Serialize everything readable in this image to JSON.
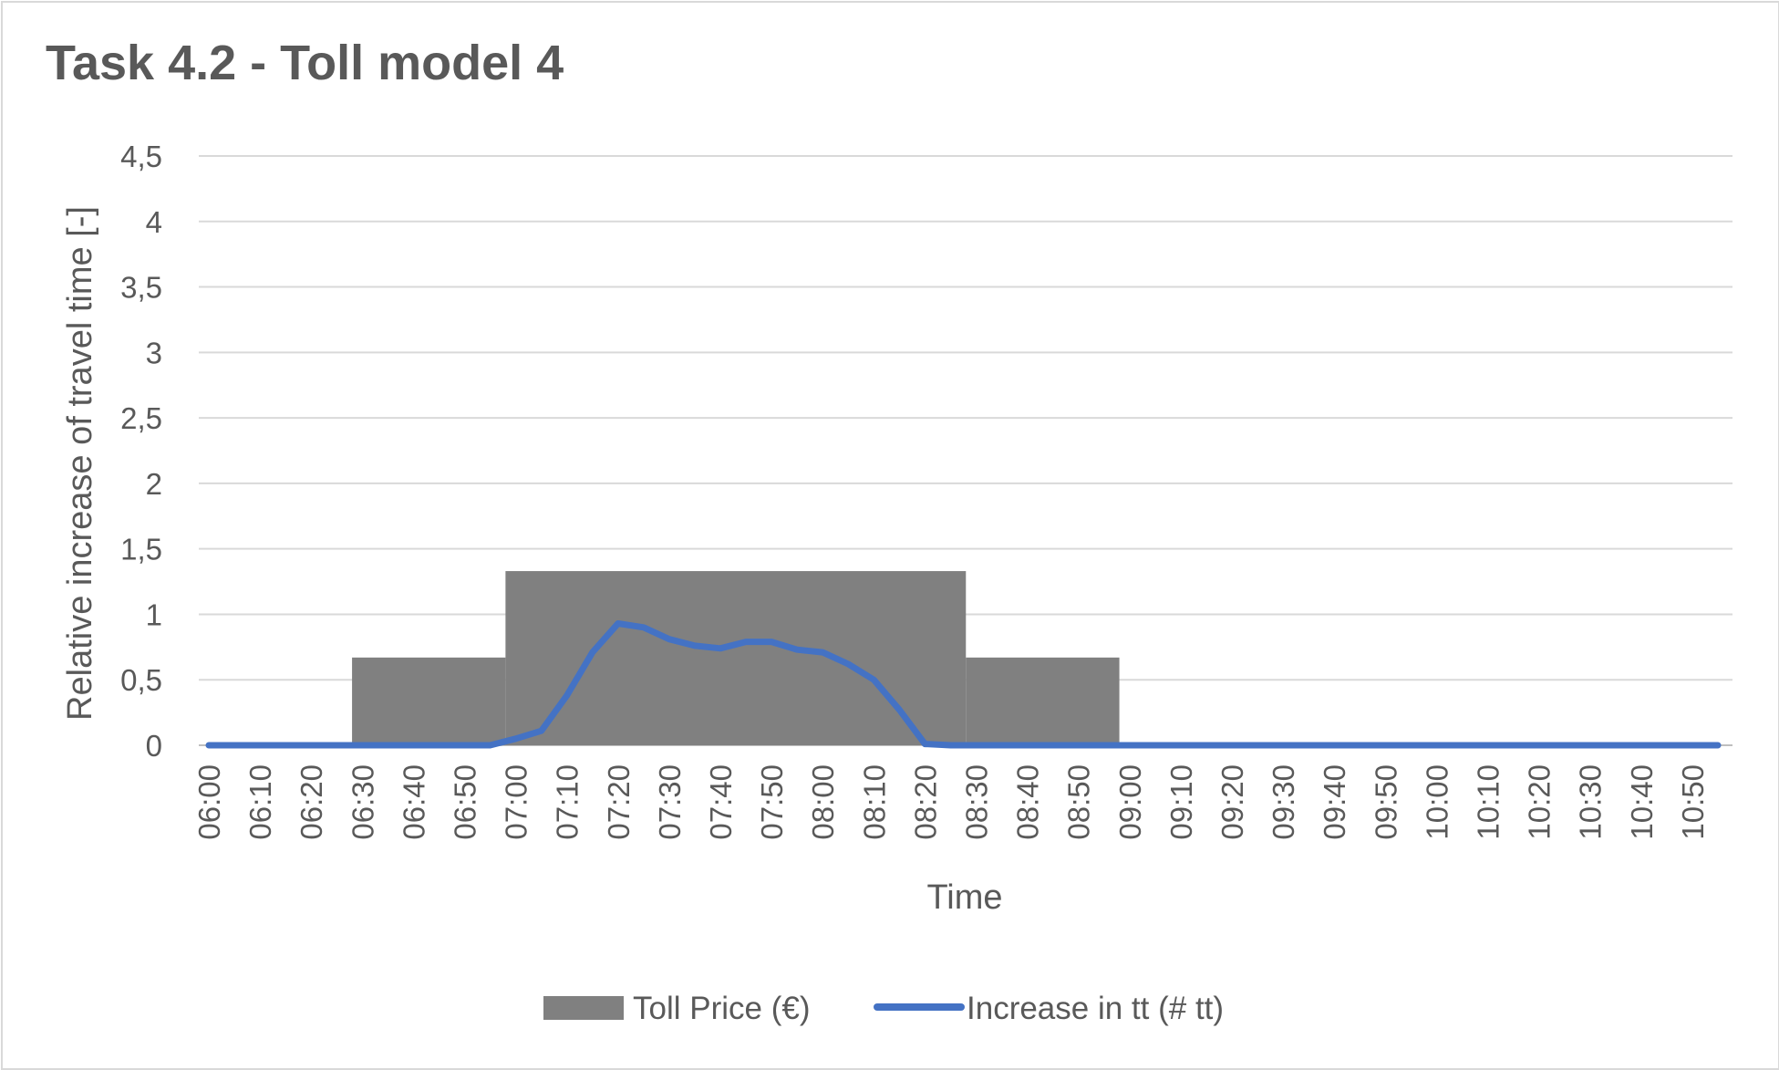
{
  "chart_data": {
    "type": "bar+line",
    "title": "Task 4.2 - Toll model 4",
    "xlabel": "Time",
    "ylabel": "Relative increase of travel time [-]",
    "ylim": [
      0,
      4.5
    ],
    "yticks": [
      "0",
      "0,5",
      "1",
      "1,5",
      "2",
      "2,5",
      "3",
      "3,5",
      "4",
      "4,5"
    ],
    "ytick_values": [
      0,
      0.5,
      1,
      1.5,
      2,
      2.5,
      3,
      3.5,
      4,
      4.5
    ],
    "xticks": [
      "06:00",
      "06:10",
      "06:20",
      "06:30",
      "06:40",
      "06:50",
      "07:00",
      "07:10",
      "07:20",
      "07:30",
      "07:40",
      "07:50",
      "08:00",
      "08:10",
      "08:20",
      "08:30",
      "08:40",
      "08:50",
      "09:00",
      "09:10",
      "09:20",
      "09:30",
      "09:40",
      "09:50",
      "10:00",
      "10:10",
      "10:20",
      "10:30",
      "10:40",
      "10:50"
    ],
    "grid": true,
    "legend_position": "bottom",
    "series": [
      {
        "name": "Toll Price (€)",
        "kind": "step-area",
        "color": "#808080",
        "segments": [
          {
            "from": "06:28",
            "to": "06:58",
            "value": 0.67
          },
          {
            "from": "06:58",
            "to": "08:28",
            "value": 1.33
          },
          {
            "from": "08:28",
            "to": "08:58",
            "value": 0.67
          }
        ]
      },
      {
        "name": "Increase in tt (# tt)",
        "kind": "line",
        "color": "#4472c4",
        "x": [
          "06:00",
          "06:05",
          "06:10",
          "06:15",
          "06:20",
          "06:25",
          "06:30",
          "06:35",
          "06:40",
          "06:45",
          "06:50",
          "06:55",
          "07:00",
          "07:05",
          "07:10",
          "07:15",
          "07:20",
          "07:25",
          "07:30",
          "07:35",
          "07:40",
          "07:45",
          "07:50",
          "07:55",
          "08:00",
          "08:05",
          "08:10",
          "08:15",
          "08:20",
          "08:25",
          "08:30",
          "08:35",
          "08:40",
          "08:45",
          "08:50",
          "08:55",
          "09:00",
          "09:30",
          "10:00",
          "10:30",
          "10:55"
        ],
        "values": [
          0,
          0,
          0,
          0,
          0,
          0,
          0,
          0,
          0,
          0,
          0,
          0,
          0.05,
          0.11,
          0.38,
          0.71,
          0.93,
          0.9,
          0.81,
          0.76,
          0.74,
          0.79,
          0.79,
          0.73,
          0.71,
          0.62,
          0.5,
          0.27,
          0.01,
          0,
          0,
          0,
          0,
          0,
          0,
          0,
          0,
          0,
          0,
          0,
          0
        ]
      }
    ]
  }
}
